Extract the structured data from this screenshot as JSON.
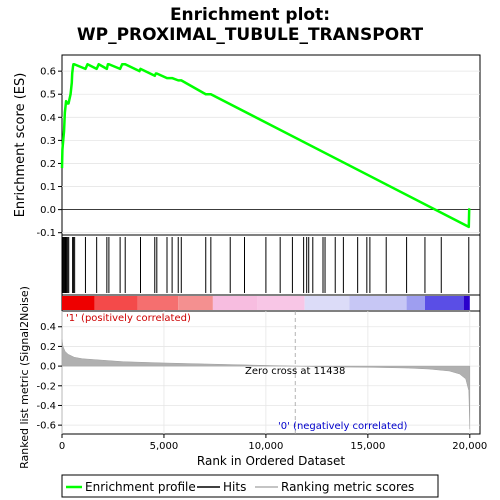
{
  "title_line1": "Enrichment plot:",
  "title_line2": "WP_PROXIMAL_TUBULE_TRANSPORT",
  "chart_data": [
    {
      "type": "line",
      "panel": "enrichment",
      "ylabel": "Enrichment score (ES)",
      "xlim": [
        0,
        20500
      ],
      "ylim": [
        -0.11,
        0.67
      ],
      "yticks": [
        -0.1,
        0.0,
        0.1,
        0.2,
        0.3,
        0.4,
        0.5,
        0.6
      ],
      "ytick_labels": [
        "-0.1",
        "0.0",
        "0.1",
        "0.2",
        "0.3",
        "0.4",
        "0.5",
        "0.6"
      ],
      "zero_line": true,
      "series": [
        {
          "name": "Enrichment profile",
          "color": "#00ff00",
          "x": [
            0,
            20,
            60,
            100,
            140,
            200,
            260,
            320,
            420,
            480,
            500,
            540,
            560,
            600,
            1150,
            1250,
            1700,
            1800,
            2200,
            2250,
            2300,
            2850,
            2950,
            3050,
            3100,
            3800,
            3850,
            4550,
            4600,
            4650,
            5150,
            5400,
            5700,
            5850,
            7050,
            7300,
            19950,
            19970,
            20000
          ],
          "y": [
            0.18,
            0.26,
            0.3,
            0.34,
            0.42,
            0.47,
            0.46,
            0.46,
            0.5,
            0.55,
            0.59,
            0.62,
            0.63,
            0.63,
            0.61,
            0.63,
            0.61,
            0.63,
            0.61,
            0.63,
            0.63,
            0.61,
            0.63,
            0.63,
            0.63,
            0.6,
            0.61,
            0.58,
            0.59,
            0.59,
            0.57,
            0.57,
            0.56,
            0.56,
            0.5,
            0.5,
            -0.075,
            0.0,
            0.005
          ]
        }
      ]
    },
    {
      "type": "rug",
      "panel": "hits",
      "label": "Hits",
      "hit_positions": [
        30,
        70,
        110,
        150,
        190,
        230,
        280,
        330,
        520,
        560,
        620,
        1150,
        1700,
        2200,
        2300,
        2850,
        3100,
        3850,
        4550,
        4650,
        5150,
        5400,
        5700,
        5850,
        7050,
        7300,
        8250,
        8950,
        10000,
        10700,
        11300,
        11850,
        12000,
        12100,
        12300,
        12800,
        12900,
        13400,
        13800,
        14500,
        14950,
        15100,
        15900,
        16900,
        17800,
        18600,
        19950
      ]
    },
    {
      "type": "heatmap",
      "panel": "rank-colorbar",
      "segments": [
        {
          "from": 0,
          "to": 1600,
          "color": "#ee0000"
        },
        {
          "from": 1600,
          "to": 3700,
          "color": "#f44a4a"
        },
        {
          "from": 3700,
          "to": 5700,
          "color": "#f56f6f"
        },
        {
          "from": 5700,
          "to": 7400,
          "color": "#f49090"
        },
        {
          "from": 7400,
          "to": 9600,
          "color": "#f7bde0"
        },
        {
          "from": 9600,
          "to": 11900,
          "color": "#f8c6e6"
        },
        {
          "from": 11900,
          "to": 14100,
          "color": "#dcdcf8"
        },
        {
          "from": 14100,
          "to": 16900,
          "color": "#c7c7f5"
        },
        {
          "from": 16900,
          "to": 17800,
          "color": "#9e9ef0"
        },
        {
          "from": 17800,
          "to": 19700,
          "color": "#5a4ee6"
        },
        {
          "from": 19700,
          "to": 20000,
          "color": "#2a00cc"
        }
      ],
      "label_positive": "'1' (positively correlated)",
      "label_negative": "'0' (negatively correlated)"
    },
    {
      "type": "area",
      "panel": "ranked-metric",
      "ylabel": "Ranked list metric (Signal2Noise)",
      "xlabel": "Rank in Ordered Dataset",
      "xlim": [
        0,
        20500
      ],
      "ylim": [
        -0.69,
        0.56
      ],
      "xticks": [
        0,
        5000,
        10000,
        15000,
        20000
      ],
      "xtick_labels": [
        "0",
        "5,000",
        "10,000",
        "15,000",
        "20,000"
      ],
      "yticks": [
        -0.6,
        -0.4,
        -0.2,
        0.0,
        0.2,
        0.4
      ],
      "ytick_labels": [
        "-0.6",
        "-0.4",
        "-0.2",
        "0.0",
        "0.2",
        "0.4"
      ],
      "zero_cross": 11438,
      "zero_cross_label": "Zero cross at 11438",
      "series": [
        {
          "name": "Ranking metric scores",
          "color": "#b0b0b0",
          "x": [
            0,
            50,
            150,
            300,
            600,
            1000,
            2000,
            3000,
            5000,
            7000,
            9000,
            11438,
            13000,
            15000,
            17000,
            18000,
            19000,
            19500,
            19800,
            19950,
            20000
          ],
          "y": [
            0.27,
            0.2,
            0.15,
            0.12,
            0.09,
            0.075,
            0.06,
            0.045,
            0.032,
            0.022,
            0.012,
            0.0,
            -0.008,
            -0.012,
            -0.02,
            -0.03,
            -0.05,
            -0.08,
            -0.13,
            -0.25,
            -0.64
          ]
        }
      ]
    }
  ],
  "legend": {
    "items": [
      {
        "label": "Enrichment profile",
        "color": "#00ff00"
      },
      {
        "label": "Hits",
        "color": "#000000"
      },
      {
        "label": "Ranking metric scores",
        "color": "#b0b0b0"
      }
    ]
  }
}
